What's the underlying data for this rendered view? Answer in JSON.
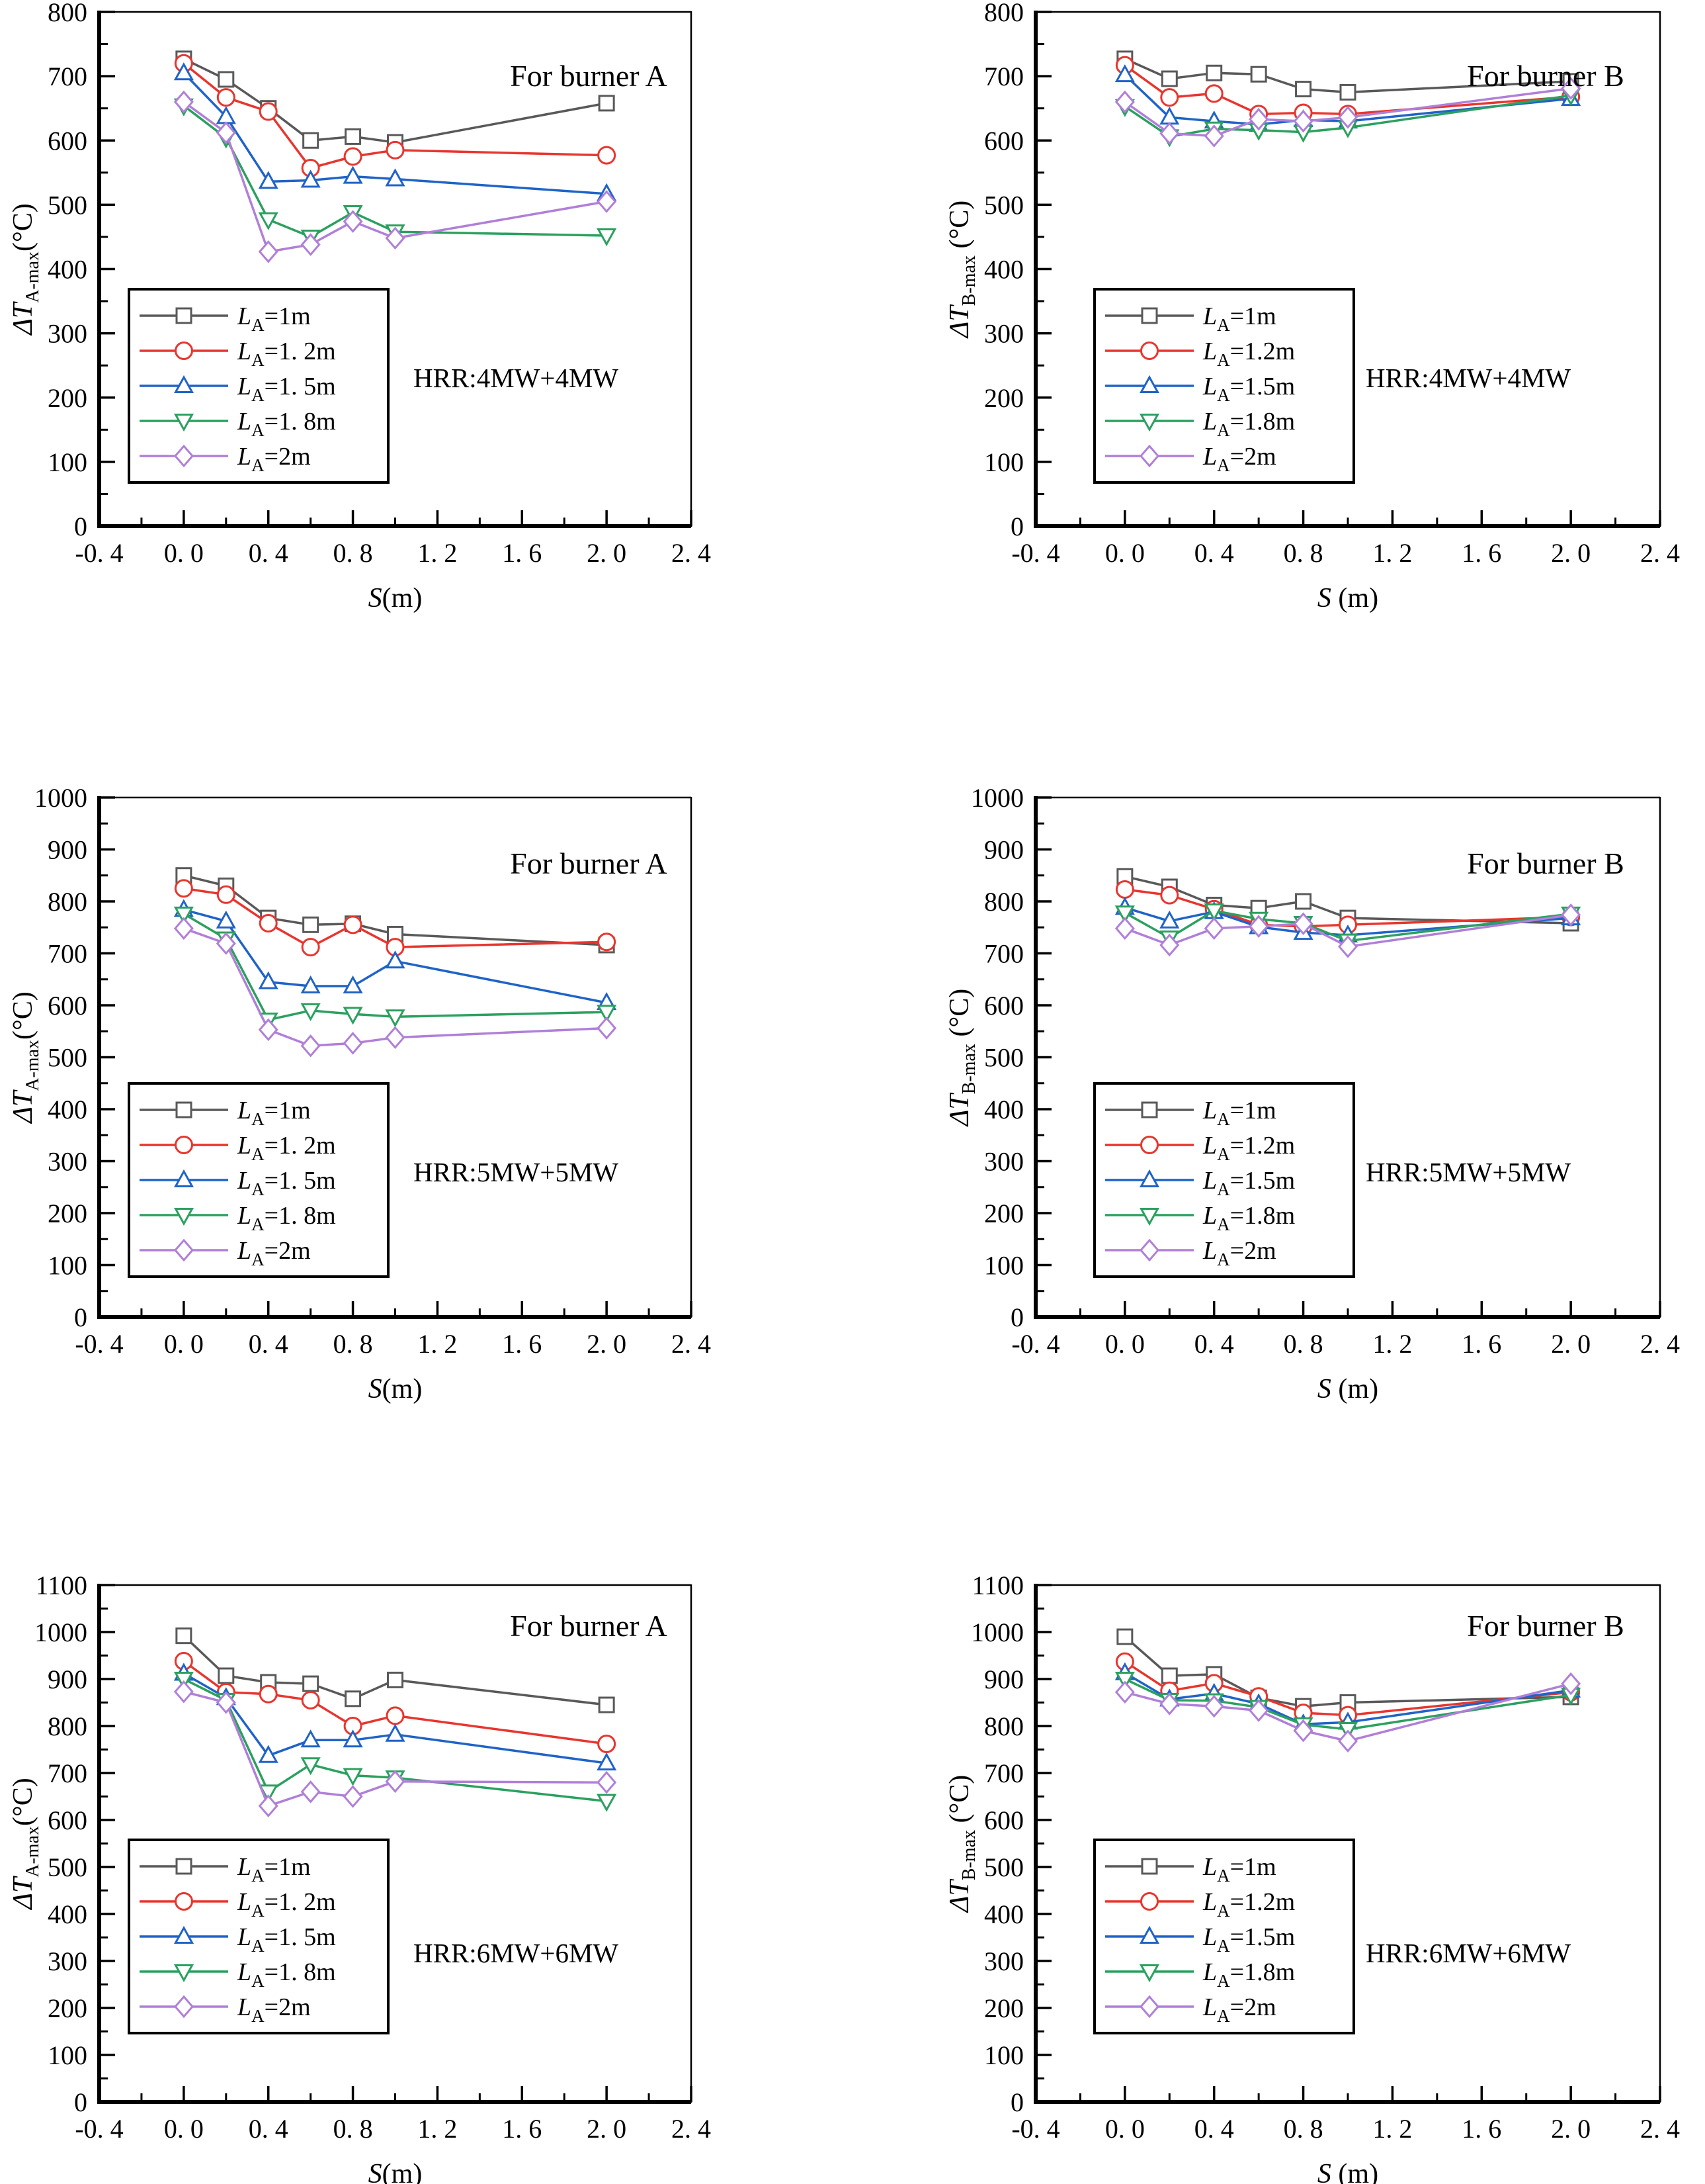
{
  "page": {
    "background": "#ffffff"
  },
  "chart_data": [
    {
      "type": "line",
      "title": "For burner A",
      "annotation": "HRR:4MW+4MW",
      "xlabel_prefix": "S",
      "xlabel_suffix": "(m)",
      "ylabel_prefix": "ΔT",
      "ylabel_sub": "A-max",
      "ylabel_suffix": "(°C)",
      "xlim": [
        -0.4,
        2.4
      ],
      "ylim": [
        0,
        800
      ],
      "xtick_labels": [
        "-0. 4",
        "0. 0",
        "0. 4",
        "0. 8",
        "1. 2",
        "1. 6",
        "2. 0",
        "2. 4"
      ],
      "ytick_step": 100,
      "x": [
        0,
        0.2,
        0.4,
        0.6,
        0.8,
        1.0,
        2.0
      ],
      "series": [
        {
          "name_prefix": "L",
          "name_sub": "A",
          "name_suffix": "=1m",
          "marker": "square",
          "color": "#595959",
          "values": [
            727,
            695,
            650,
            600,
            606,
            597,
            658
          ]
        },
        {
          "name_prefix": "L",
          "name_sub": "A",
          "name_suffix": "=1. 2m",
          "marker": "circle",
          "color": "#e8352e",
          "values": [
            720,
            667,
            645,
            557,
            575,
            585,
            577
          ]
        },
        {
          "name_prefix": "L",
          "name_sub": "A",
          "name_suffix": "=1. 5m",
          "marker": "triangle-up",
          "color": "#1f63c8",
          "values": [
            705,
            637,
            536,
            538,
            544,
            540,
            517
          ]
        },
        {
          "name_prefix": "L",
          "name_sub": "A",
          "name_suffix": "=1. 8m",
          "marker": "triangle-down",
          "color": "#2ba05f",
          "values": [
            654,
            604,
            477,
            450,
            488,
            458,
            452
          ]
        },
        {
          "name_prefix": "L",
          "name_sub": "A",
          "name_suffix": "=2m",
          "marker": "diamond",
          "color": "#b07fd8",
          "values": [
            660,
            612,
            427,
            438,
            474,
            448,
            505
          ]
        }
      ]
    },
    {
      "type": "line",
      "title": "For burner B",
      "annotation": "HRR:4MW+4MW",
      "xlabel_prefix": "S",
      "xlabel_suffix": " (m)",
      "ylabel_prefix": "ΔT",
      "ylabel_sub": "B-max",
      "ylabel_suffix": " (°C)",
      "xlim": [
        -0.4,
        2.4
      ],
      "ylim": [
        0,
        800
      ],
      "xtick_labels": [
        "-0. 4",
        "0. 0",
        "0. 4",
        "0. 8",
        "1. 2",
        "1. 6",
        "2. 0",
        "2. 4"
      ],
      "ytick_step": 100,
      "x": [
        0,
        0.2,
        0.4,
        0.6,
        0.8,
        1.0,
        2.0
      ],
      "series": [
        {
          "name_prefix": "L",
          "name_sub": "A",
          "name_suffix": "=1m",
          "marker": "square",
          "color": "#595959",
          "values": [
            727,
            696,
            705,
            703,
            680,
            675,
            692
          ]
        },
        {
          "name_prefix": "L",
          "name_sub": "A",
          "name_suffix": "=1.2m",
          "marker": "circle",
          "color": "#e8352e",
          "values": [
            717,
            667,
            673,
            641,
            643,
            641,
            668
          ]
        },
        {
          "name_prefix": "L",
          "name_sub": "A",
          "name_suffix": "=1.5m",
          "marker": "triangle-up",
          "color": "#1f63c8",
          "values": [
            702,
            636,
            630,
            625,
            632,
            630,
            665
          ]
        },
        {
          "name_prefix": "L",
          "name_sub": "A",
          "name_suffix": "=1.8m",
          "marker": "triangle-down",
          "color": "#2ba05f",
          "values": [
            653,
            606,
            618,
            616,
            613,
            620,
            670
          ]
        },
        {
          "name_prefix": "L",
          "name_sub": "A",
          "name_suffix": "=2m",
          "marker": "diamond",
          "color": "#b07fd8",
          "values": [
            660,
            611,
            607,
            633,
            630,
            636,
            681
          ]
        }
      ]
    },
    {
      "type": "line",
      "title": "For burner A",
      "annotation": "HRR:5MW+5MW",
      "xlabel_prefix": "S",
      "xlabel_suffix": "(m)",
      "ylabel_prefix": "ΔT",
      "ylabel_sub": "A-max",
      "ylabel_suffix": "(°C)",
      "xlim": [
        -0.4,
        2.4
      ],
      "ylim": [
        0,
        1000
      ],
      "xtick_labels": [
        "-0. 4",
        "0. 0",
        "0. 4",
        "0. 8",
        "1. 2",
        "1. 6",
        "2. 0",
        "2. 4"
      ],
      "ytick_step": 100,
      "x": [
        0,
        0.2,
        0.4,
        0.6,
        0.8,
        1.0,
        2.0
      ],
      "series": [
        {
          "name_prefix": "L",
          "name_sub": "A",
          "name_suffix": "=1m",
          "marker": "square",
          "color": "#595959",
          "values": [
            850,
            830,
            768,
            755,
            757,
            737,
            716
          ]
        },
        {
          "name_prefix": "L",
          "name_sub": "A",
          "name_suffix": "=1. 2m",
          "marker": "circle",
          "color": "#e8352e",
          "values": [
            825,
            813,
            758,
            712,
            755,
            712,
            722
          ]
        },
        {
          "name_prefix": "L",
          "name_sub": "A",
          "name_suffix": "=1. 5m",
          "marker": "triangle-up",
          "color": "#1f63c8",
          "values": [
            784,
            762,
            645,
            637,
            637,
            685,
            605
          ]
        },
        {
          "name_prefix": "L",
          "name_sub": "A",
          "name_suffix": "=1. 8m",
          "marker": "triangle-down",
          "color": "#2ba05f",
          "values": [
            776,
            728,
            572,
            590,
            583,
            578,
            587
          ]
        },
        {
          "name_prefix": "L",
          "name_sub": "A",
          "name_suffix": "=2m",
          "marker": "diamond",
          "color": "#b07fd8",
          "values": [
            748,
            719,
            553,
            522,
            527,
            538,
            556
          ]
        }
      ]
    },
    {
      "type": "line",
      "title": "For burner B",
      "annotation": "HRR:5MW+5MW",
      "xlabel_prefix": "S",
      "xlabel_suffix": " (m)",
      "ylabel_prefix": "ΔT",
      "ylabel_sub": "B-max",
      "ylabel_suffix": " (°C)",
      "xlim": [
        -0.4,
        2.4
      ],
      "ylim": [
        0,
        1000
      ],
      "xtick_labels": [
        "-0. 4",
        "0. 0",
        "0. 4",
        "0. 8",
        "1. 2",
        "1. 6",
        "2. 0",
        "2. 4"
      ],
      "ytick_step": 100,
      "x": [
        0,
        0.2,
        0.4,
        0.6,
        0.8,
        1.0,
        2.0
      ],
      "series": [
        {
          "name_prefix": "L",
          "name_sub": "A",
          "name_suffix": "=1m",
          "marker": "square",
          "color": "#595959",
          "values": [
            848,
            828,
            793,
            787,
            800,
            768,
            758
          ]
        },
        {
          "name_prefix": "L",
          "name_sub": "A",
          "name_suffix": "=1.2m",
          "marker": "circle",
          "color": "#e8352e",
          "values": [
            823,
            812,
            785,
            755,
            752,
            755,
            770
          ]
        },
        {
          "name_prefix": "L",
          "name_sub": "A",
          "name_suffix": "=1.5m",
          "marker": "triangle-up",
          "color": "#1f63c8",
          "values": [
            788,
            762,
            780,
            751,
            740,
            735,
            768
          ]
        },
        {
          "name_prefix": "L",
          "name_sub": "A",
          "name_suffix": "=1.8m",
          "marker": "triangle-down",
          "color": "#2ba05f",
          "values": [
            778,
            730,
            782,
            766,
            758,
            724,
            776
          ]
        },
        {
          "name_prefix": "L",
          "name_sub": "A",
          "name_suffix": "=2m",
          "marker": "diamond",
          "color": "#b07fd8",
          "values": [
            748,
            716,
            748,
            752,
            757,
            713,
            774
          ]
        }
      ]
    },
    {
      "type": "line",
      "title": "For burner A",
      "annotation": "HRR:6MW+6MW",
      "xlabel_prefix": "S",
      "xlabel_suffix": "(m)",
      "ylabel_prefix": "ΔT",
      "ylabel_sub": "A-max",
      "ylabel_suffix": "(°C)",
      "xlim": [
        -0.4,
        2.4
      ],
      "ylim": [
        0,
        1100
      ],
      "xtick_labels": [
        "-0. 4",
        "0. 0",
        "0. 4",
        "0. 8",
        "1. 2",
        "1. 6",
        "2. 0",
        "2. 4"
      ],
      "ytick_step": 100,
      "x": [
        0,
        0.2,
        0.4,
        0.6,
        0.8,
        1.0,
        2.0
      ],
      "series": [
        {
          "name_prefix": "L",
          "name_sub": "A",
          "name_suffix": "=1m",
          "marker": "square",
          "color": "#595959",
          "values": [
            992,
            907,
            893,
            890,
            858,
            898,
            845
          ]
        },
        {
          "name_prefix": "L",
          "name_sub": "A",
          "name_suffix": "=1. 2m",
          "marker": "circle",
          "color": "#e8352e",
          "values": [
            938,
            872,
            868,
            855,
            800,
            822,
            762
          ]
        },
        {
          "name_prefix": "L",
          "name_sub": "A",
          "name_suffix": "=1. 5m",
          "marker": "triangle-up",
          "color": "#1f63c8",
          "values": [
            912,
            860,
            737,
            770,
            770,
            782,
            721
          ]
        },
        {
          "name_prefix": "L",
          "name_sub": "A",
          "name_suffix": "=1. 8m",
          "marker": "triangle-down",
          "color": "#2ba05f",
          "values": [
            900,
            855,
            660,
            718,
            695,
            690,
            640
          ]
        },
        {
          "name_prefix": "L",
          "name_sub": "A",
          "name_suffix": "=2m",
          "marker": "diamond",
          "color": "#b07fd8",
          "values": [
            873,
            850,
            630,
            660,
            650,
            682,
            680
          ]
        }
      ]
    },
    {
      "type": "line",
      "title": "For burner B",
      "annotation": "HRR:6MW+6MW",
      "xlabel_prefix": "S",
      "xlabel_suffix": " (m)",
      "ylabel_prefix": "ΔT",
      "ylabel_sub": "B-max",
      "ylabel_suffix": " (°C)",
      "xlim": [
        -0.4,
        2.4
      ],
      "ylim": [
        0,
        1100
      ],
      "xtick_labels": [
        "-0. 4",
        "0. 0",
        "0. 4",
        "0. 8",
        "1. 2",
        "1. 6",
        "2. 0",
        "2. 4"
      ],
      "ytick_step": 100,
      "x": [
        0,
        0.2,
        0.4,
        0.6,
        0.8,
        1.0,
        2.0
      ],
      "series": [
        {
          "name_prefix": "L",
          "name_sub": "A",
          "name_suffix": "=1m",
          "marker": "square",
          "color": "#595959",
          "values": [
            990,
            907,
            910,
            860,
            842,
            850,
            862
          ]
        },
        {
          "name_prefix": "L",
          "name_sub": "A",
          "name_suffix": "=1.2m",
          "marker": "circle",
          "color": "#e8352e",
          "values": [
            937,
            875,
            891,
            863,
            828,
            823,
            872
          ]
        },
        {
          "name_prefix": "L",
          "name_sub": "A",
          "name_suffix": "=1.5m",
          "marker": "triangle-up",
          "color": "#1f63c8",
          "values": [
            913,
            857,
            869,
            847,
            804,
            808,
            876
          ]
        },
        {
          "name_prefix": "L",
          "name_sub": "A",
          "name_suffix": "=1.8m",
          "marker": "triangle-down",
          "color": "#2ba05f",
          "values": [
            900,
            855,
            854,
            840,
            803,
            793,
            866
          ]
        },
        {
          "name_prefix": "L",
          "name_sub": "A",
          "name_suffix": "=2m",
          "marker": "diamond",
          "color": "#b07fd8",
          "values": [
            872,
            847,
            842,
            833,
            790,
            768,
            890
          ]
        }
      ]
    }
  ]
}
